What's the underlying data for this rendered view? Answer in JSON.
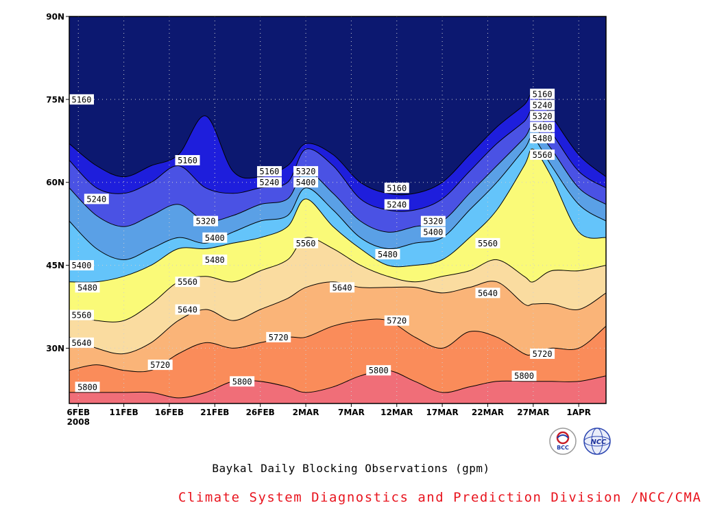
{
  "title": "Baykal Daily Blocking Observations (gpm)",
  "credit": "Climate System Diagnostics and Prediction Division /NCC/CMA",
  "logos": {
    "left_text": "BCC",
    "right_text": "NCC"
  },
  "chart_data": {
    "type": "contour",
    "title": "Baykal Daily Blocking Observations (gpm)",
    "xlabel": "",
    "ylabel": "",
    "x_tick_labels": [
      "6FEB",
      "11FEB",
      "16FEB",
      "21FEB",
      "26FEB",
      "2MAR",
      "7MAR",
      "12MAR",
      "17MAR",
      "22MAR",
      "27MAR",
      "1APR"
    ],
    "x_year_label": "2008",
    "x_range": [
      "5FEB2008",
      "4APR2008"
    ],
    "y_tick_labels": [
      "30N",
      "45N",
      "60N",
      "75N",
      "90N"
    ],
    "y_ticks": [
      30,
      45,
      60,
      75,
      90
    ],
    "ylim": [
      20,
      90
    ],
    "levels": [
      5160,
      5240,
      5320,
      5400,
      5480,
      5560,
      5640,
      5720,
      5800
    ],
    "colors": {
      "below_5160": "#0c1870",
      "5160": "#1e1edc",
      "5240": "#4a52e4",
      "5320": "#5aa0e6",
      "5400": "#64c4fa",
      "5480": "#fafa78",
      "5560": "#fadca0",
      "5640": "#fab478",
      "5720": "#fa8c5a",
      "5800": "#f06e78"
    },
    "contour_latitudes": {
      "dates": [
        "5FEB",
        "8FEB",
        "11FEB",
        "14FEB",
        "17FEB",
        "20FEB",
        "23FEB",
        "26FEB",
        "29FEB",
        "2MAR",
        "5MAR",
        "8MAR",
        "11MAR",
        "14MAR",
        "17MAR",
        "20MAR",
        "23MAR",
        "26MAR",
        "27MAR",
        "29MAR",
        "1APR",
        "4APR"
      ],
      "5160": [
        67,
        63,
        61,
        63,
        65,
        72,
        62,
        61,
        63,
        67,
        65,
        60,
        58,
        58,
        60,
        65,
        70,
        74,
        76,
        72,
        65,
        61
      ],
      "5240": [
        64,
        59,
        58,
        60,
        63,
        59,
        58,
        59,
        60,
        66,
        63,
        57,
        55,
        55,
        57,
        62,
        67,
        71,
        73,
        69,
        62,
        59
      ],
      "5320": [
        59,
        54,
        52,
        54,
        56,
        53,
        54,
        56,
        57,
        62,
        58,
        53,
        51,
        52,
        53,
        58,
        63,
        68,
        70,
        66,
        59,
        56
      ],
      "5400": [
        53,
        48,
        46,
        48,
        50,
        49,
        51,
        53,
        54,
        59,
        55,
        50,
        48,
        49,
        50,
        55,
        60,
        66,
        68,
        63,
        56,
        53
      ],
      "5480": [
        42,
        42,
        43,
        45,
        48,
        48,
        49,
        50,
        52,
        57,
        52,
        48,
        45,
        45,
        46,
        50,
        55,
        63,
        66,
        61,
        51,
        50
      ],
      "5560": [
        36,
        35,
        35,
        38,
        42,
        43,
        42,
        44,
        46,
        50,
        48,
        45,
        43,
        42,
        43,
        44,
        46,
        43,
        42,
        44,
        44,
        45
      ],
      "5640": [
        32,
        30,
        29,
        31,
        35,
        37,
        35,
        37,
        39,
        41,
        42,
        41,
        41,
        41,
        40,
        41,
        42,
        38,
        38,
        38,
        37,
        40
      ],
      "5720": [
        26,
        27,
        26,
        26,
        29,
        31,
        30,
        31,
        32,
        32,
        34,
        35,
        35,
        32,
        30,
        33,
        32,
        29,
        29,
        30,
        30,
        34
      ],
      "5800": [
        22,
        22,
        22,
        22,
        21,
        22,
        24,
        24,
        23,
        22,
        23,
        25,
        26,
        24,
        22,
        23,
        24,
        24,
        24,
        24,
        24,
        25
      ]
    },
    "labels": [
      {
        "text": "5160",
        "date": "6FEB",
        "lat": 75
      },
      {
        "text": "5160",
        "date": "18FEB",
        "lat": 64
      },
      {
        "text": "5160",
        "date": "27FEB",
        "lat": 62
      },
      {
        "text": "5160",
        "date": "12MAR",
        "lat": 59
      },
      {
        "text": "5160",
        "date": "28MAR",
        "lat": 76
      },
      {
        "text": "5240",
        "date": "8FEB",
        "lat": 57
      },
      {
        "text": "5240",
        "date": "27FEB",
        "lat": 60
      },
      {
        "text": "5240",
        "date": "12MAR",
        "lat": 56
      },
      {
        "text": "5240",
        "date": "28MAR",
        "lat": 74
      },
      {
        "text": "5320",
        "date": "20FEB",
        "lat": 53
      },
      {
        "text": "5320",
        "date": "2MAR",
        "lat": 62
      },
      {
        "text": "5320",
        "date": "16MAR",
        "lat": 53
      },
      {
        "text": "5320",
        "date": "28MAR",
        "lat": 72
      },
      {
        "text": "5400",
        "date": "6FEB",
        "lat": 45
      },
      {
        "text": "5400",
        "date": "21FEB",
        "lat": 50
      },
      {
        "text": "5400",
        "date": "2MAR",
        "lat": 60
      },
      {
        "text": "5400",
        "date": "16MAR",
        "lat": 51
      },
      {
        "text": "5400",
        "date": "28MAR",
        "lat": 70
      },
      {
        "text": "5480",
        "date": "7FEB",
        "lat": 41
      },
      {
        "text": "5480",
        "date": "21FEB",
        "lat": 46
      },
      {
        "text": "5480",
        "date": "11MAR",
        "lat": 47
      },
      {
        "text": "5480",
        "date": "28MAR",
        "lat": 68
      },
      {
        "text": "5560",
        "date": "5FEB",
        "lat": 36
      },
      {
        "text": "5560",
        "date": "18FEB",
        "lat": 42
      },
      {
        "text": "5560",
        "date": "2MAR",
        "lat": 49
      },
      {
        "text": "5560",
        "date": "22MAR",
        "lat": 49
      },
      {
        "text": "5560",
        "date": "28MAR",
        "lat": 65
      },
      {
        "text": "5640",
        "date": "5FEB",
        "lat": 31
      },
      {
        "text": "5640",
        "date": "18FEB",
        "lat": 37
      },
      {
        "text": "5640",
        "date": "6MAR",
        "lat": 41
      },
      {
        "text": "5640",
        "date": "22MAR",
        "lat": 40
      },
      {
        "text": "5720",
        "date": "15FEB",
        "lat": 27
      },
      {
        "text": "5720",
        "date": "28FEB",
        "lat": 32
      },
      {
        "text": "5720",
        "date": "12MAR",
        "lat": 35
      },
      {
        "text": "5720",
        "date": "28MAR",
        "lat": 29
      },
      {
        "text": "5800",
        "date": "7FEB",
        "lat": 23
      },
      {
        "text": "5800",
        "date": "24FEB",
        "lat": 24
      },
      {
        "text": "5800",
        "date": "10MAR",
        "lat": 26
      },
      {
        "text": "5800",
        "date": "26MAR",
        "lat": 25
      }
    ],
    "grid": true
  }
}
